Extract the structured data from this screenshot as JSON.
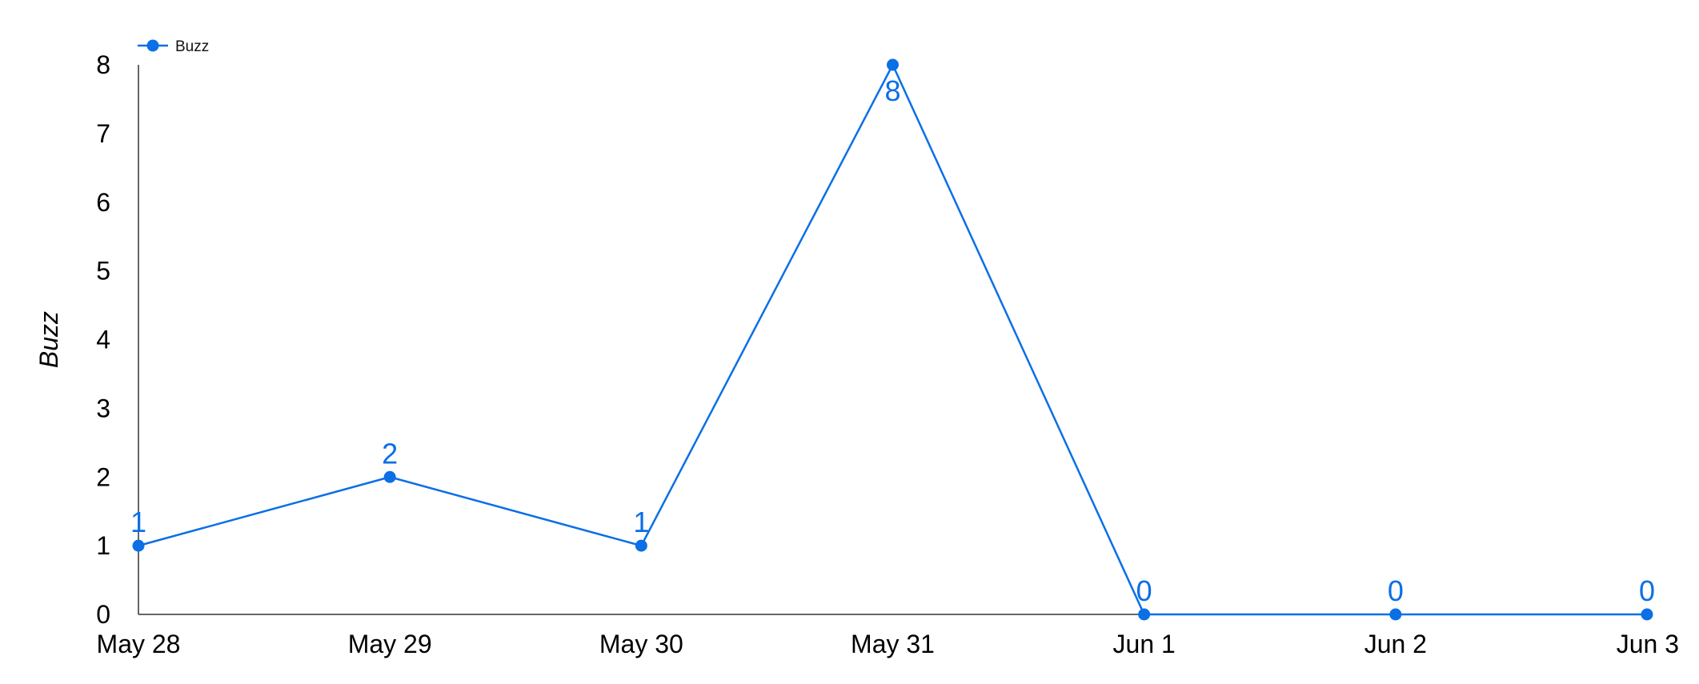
{
  "chart_data": {
    "type": "line",
    "categories": [
      "May 28",
      "May 29",
      "May 30",
      "May 31",
      "Jun 1",
      "Jun 2",
      "Jun 3"
    ],
    "series": [
      {
        "name": "Buzz",
        "values": [
          1,
          2,
          1,
          8,
          0,
          0,
          0
        ],
        "color": "#0b6fe6"
      }
    ],
    "xlabel": "",
    "ylabel": "Buzz",
    "ylim": [
      0,
      8
    ],
    "yticks": [
      0,
      1,
      2,
      3,
      4,
      5,
      6,
      7,
      8
    ],
    "grid": false,
    "data_labels": true,
    "legend": {
      "placement": "top-left",
      "entries": [
        "Buzz"
      ]
    }
  }
}
